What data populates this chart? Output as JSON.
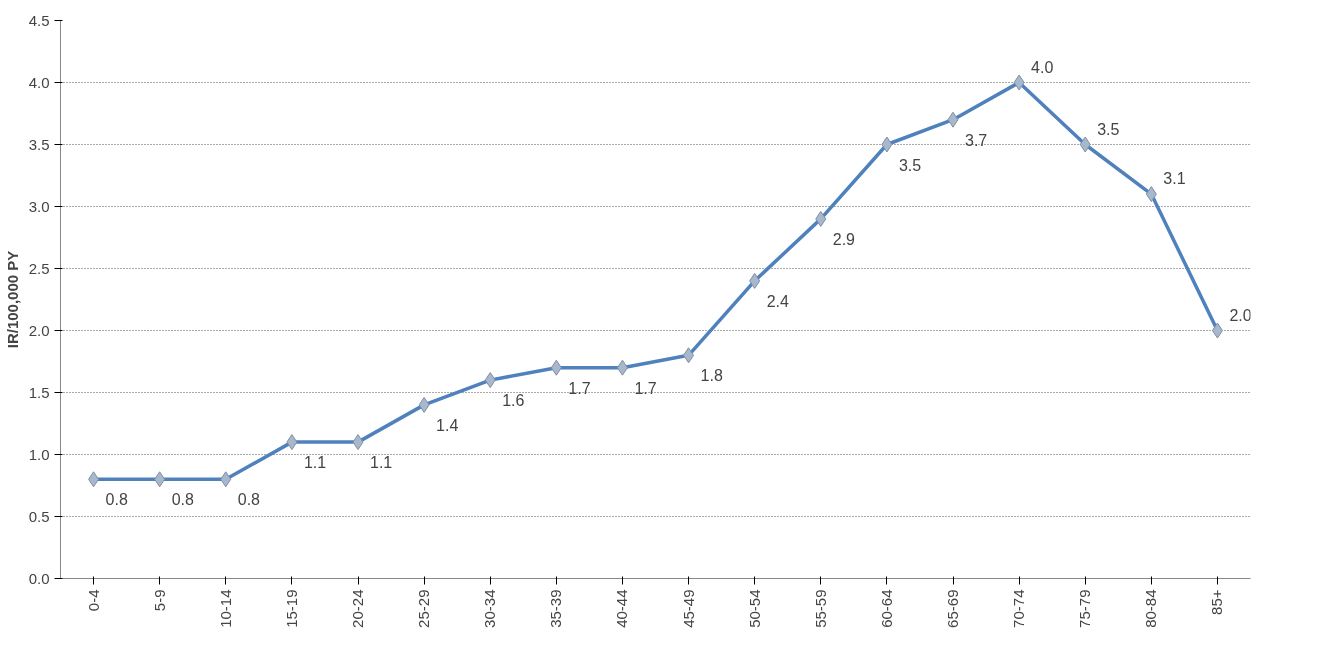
{
  "chart_data": {
    "type": "line",
    "ylabel": "IR/100,000 PY",
    "categories": [
      "0-4",
      "5-9",
      "10-14",
      "15-19",
      "20-24",
      "25-29",
      "30-34",
      "35-39",
      "40-44",
      "45-49",
      "50-54",
      "55-59",
      "60-64",
      "65-69",
      "70-74",
      "75-79",
      "80-84",
      "85+"
    ],
    "series": [
      {
        "color": "#4f81bd",
        "values": [
          0.8,
          0.8,
          0.8,
          1.1,
          1.1,
          1.4,
          1.6,
          1.7,
          1.7,
          1.8,
          2.4,
          2.9,
          3.5,
          3.7,
          4.0,
          3.5,
          3.1,
          2.0
        ],
        "value_labels": [
          "0.8",
          "0.8",
          "0.8",
          "1.1",
          "1.1",
          "1.4",
          "1.6",
          "1.7",
          "1.7",
          "1.8",
          "2.4",
          "2.9",
          "3.5",
          "3.7",
          "4.0",
          "3.5",
          "3.1",
          "2.0"
        ]
      }
    ],
    "ylim": [
      0,
      4.5
    ],
    "yticks": [
      {
        "value": 0,
        "label": "0.0"
      },
      {
        "value": 0.5,
        "label": "0.5"
      },
      {
        "value": 1,
        "label": "1.0"
      },
      {
        "value": 1.5,
        "label": "1.5"
      },
      {
        "value": 2,
        "label": "2.0"
      },
      {
        "value": 2.5,
        "label": "2.5"
      },
      {
        "value": 3,
        "label": "3.0"
      },
      {
        "value": 3.5,
        "label": "3.5"
      },
      {
        "value": 4,
        "label": "4.0"
      },
      {
        "value": 4.5,
        "label": "4.5"
      }
    ],
    "grid": "y",
    "marker": "diamond",
    "line_style": "solid"
  }
}
